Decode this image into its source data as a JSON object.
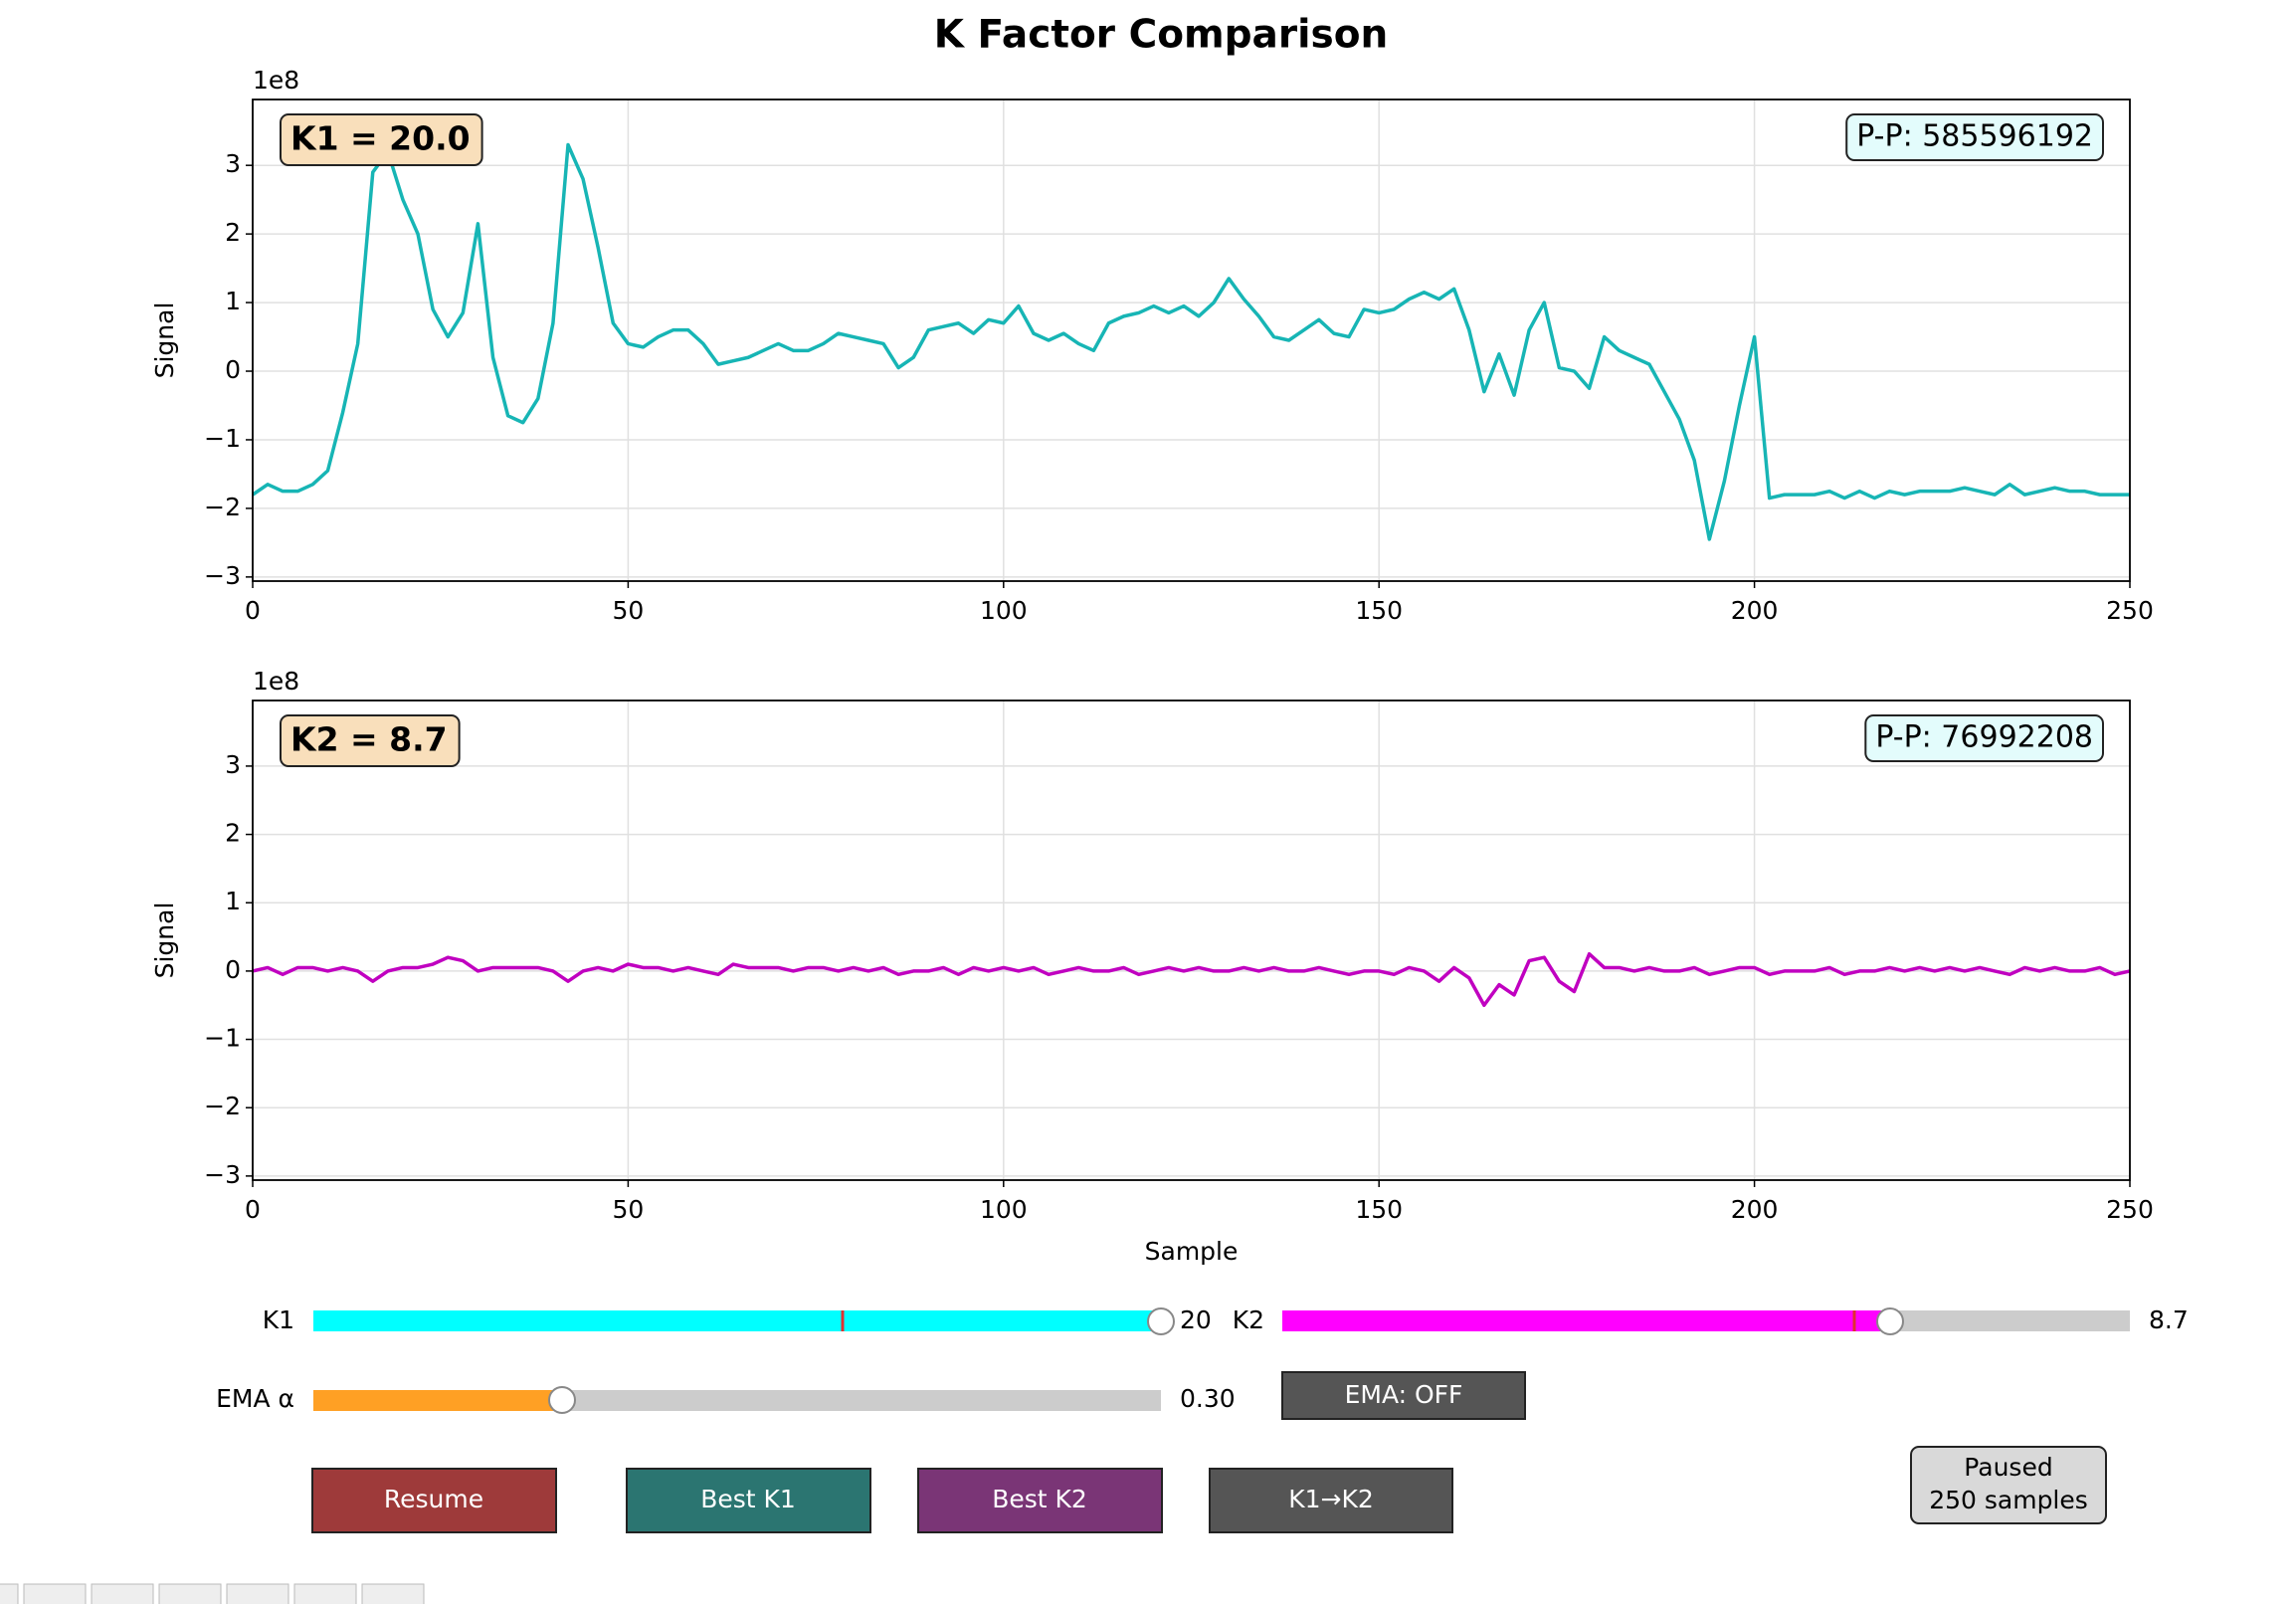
{
  "chart_data": [
    {
      "type": "line",
      "title": "K Factor Comparison",
      "ylabel": "Signal",
      "offset_label": "1e8",
      "badge": "K1 = 20.0",
      "annotation": "P-P: 585596192",
      "x": [
        0,
        2,
        4,
        6,
        8,
        10,
        12,
        14,
        16,
        18,
        20,
        22,
        24,
        26,
        28,
        30,
        32,
        34,
        36,
        38,
        40,
        42,
        44,
        46,
        48,
        50,
        52,
        54,
        56,
        58,
        60,
        62,
        64,
        66,
        68,
        70,
        72,
        74,
        76,
        78,
        80,
        82,
        84,
        86,
        88,
        90,
        92,
        94,
        96,
        98,
        100,
        102,
        104,
        106,
        108,
        110,
        112,
        114,
        116,
        118,
        120,
        122,
        124,
        126,
        128,
        130,
        132,
        134,
        136,
        138,
        140,
        142,
        144,
        146,
        148,
        150,
        152,
        154,
        156,
        158,
        160,
        162,
        164,
        166,
        168,
        170,
        172,
        174,
        176,
        178,
        180,
        182,
        184,
        186,
        188,
        190,
        192,
        194,
        196,
        198,
        200,
        202,
        204,
        206,
        208,
        210,
        212,
        214,
        216,
        218,
        220,
        222,
        224,
        226,
        228,
        230,
        232,
        234,
        236,
        238,
        240,
        242,
        244,
        246,
        248,
        250
      ],
      "series": [
        {
          "color": "#17b5b5",
          "values": [
            -1.8,
            -1.65,
            -1.75,
            -1.75,
            -1.65,
            -1.45,
            -0.6,
            0.4,
            2.9,
            3.2,
            2.5,
            2.0,
            0.9,
            0.5,
            0.85,
            2.15,
            0.2,
            -0.65,
            -0.75,
            -0.4,
            0.7,
            3.3,
            2.8,
            1.8,
            0.7,
            0.4,
            0.35,
            0.5,
            0.6,
            0.6,
            0.4,
            0.1,
            0.15,
            0.2,
            0.3,
            0.4,
            0.3,
            0.3,
            0.4,
            0.55,
            0.5,
            0.45,
            0.4,
            0.05,
            0.2,
            0.6,
            0.65,
            0.7,
            0.55,
            0.75,
            0.7,
            0.95,
            0.55,
            0.45,
            0.55,
            0.4,
            0.3,
            0.7,
            0.8,
            0.85,
            0.95,
            0.85,
            0.95,
            0.8,
            1.0,
            1.35,
            1.05,
            0.8,
            0.5,
            0.45,
            0.6,
            0.75,
            0.55,
            0.5,
            0.9,
            0.85,
            0.9,
            1.05,
            1.15,
            1.05,
            1.2,
            0.6,
            -0.3,
            0.25,
            -0.35,
            0.6,
            1.0,
            0.05,
            0.0,
            -0.25,
            0.5,
            0.3,
            0.2,
            0.1,
            -0.3,
            -0.7,
            -1.3,
            -2.45,
            -1.6,
            -0.5,
            0.5,
            -1.85,
            -1.8,
            -1.8,
            -1.8,
            -1.75,
            -1.85,
            -1.75,
            -1.85,
            -1.75,
            -1.8,
            -1.75,
            -1.75,
            -1.75,
            -1.7,
            -1.75,
            -1.8,
            -1.65,
            -1.8,
            -1.75,
            -1.7,
            -1.75,
            -1.75,
            -1.8,
            -1.8,
            -1.8
          ]
        }
      ],
      "xlim": [
        0,
        250
      ],
      "xticks": [
        0,
        50,
        100,
        150,
        200,
        250
      ],
      "ylim": [
        -3.06,
        3.96
      ],
      "yticks": [
        {
          "value": -3,
          "label": "−3"
        },
        {
          "value": -2,
          "label": "−2"
        },
        {
          "value": -1,
          "label": "−1"
        },
        0,
        1,
        2,
        3
      ],
      "grid": true
    },
    {
      "type": "line",
      "xlabel": "Sample",
      "ylabel": "Signal",
      "offset_label": "1e8",
      "badge": "K2 = 8.7",
      "annotation": "P-P: 76992208",
      "x": [
        0,
        2,
        4,
        6,
        8,
        10,
        12,
        14,
        16,
        18,
        20,
        22,
        24,
        26,
        28,
        30,
        32,
        34,
        36,
        38,
        40,
        42,
        44,
        46,
        48,
        50,
        52,
        54,
        56,
        58,
        60,
        62,
        64,
        66,
        68,
        70,
        72,
        74,
        76,
        78,
        80,
        82,
        84,
        86,
        88,
        90,
        92,
        94,
        96,
        98,
        100,
        102,
        104,
        106,
        108,
        110,
        112,
        114,
        116,
        118,
        120,
        122,
        124,
        126,
        128,
        130,
        132,
        134,
        136,
        138,
        140,
        142,
        144,
        146,
        148,
        150,
        152,
        154,
        156,
        158,
        160,
        162,
        164,
        166,
        168,
        170,
        172,
        174,
        176,
        178,
        180,
        182,
        184,
        186,
        188,
        190,
        192,
        194,
        196,
        198,
        200,
        202,
        204,
        206,
        208,
        210,
        212,
        214,
        216,
        218,
        220,
        222,
        224,
        226,
        228,
        230,
        232,
        234,
        236,
        238,
        240,
        242,
        244,
        246,
        248,
        250
      ],
      "series": [
        {
          "color": "#c000c0",
          "values": [
            0,
            0.05,
            -0.05,
            0.05,
            0.05,
            0,
            0.05,
            0,
            -0.15,
            0,
            0.05,
            0.05,
            0.1,
            0.2,
            0.15,
            0,
            0.05,
            0.05,
            0.05,
            0.05,
            0,
            -0.15,
            0,
            0.05,
            0,
            0.1,
            0.05,
            0.05,
            0,
            0.05,
            0,
            -0.05,
            0.1,
            0.05,
            0.05,
            0.05,
            0,
            0.05,
            0.05,
            0,
            0.05,
            0,
            0.05,
            -0.05,
            0,
            0,
            0.05,
            -0.05,
            0.05,
            0,
            0.05,
            0,
            0.05,
            -0.05,
            0,
            0.05,
            0,
            0,
            0.05,
            -0.05,
            0,
            0.05,
            0,
            0.05,
            0,
            0,
            0.05,
            0,
            0.05,
            0,
            0,
            0.05,
            0,
            -0.05,
            0,
            0,
            -0.05,
            0.05,
            0,
            -0.15,
            0.05,
            -0.1,
            -0.5,
            -0.2,
            -0.35,
            0.15,
            0.2,
            -0.15,
            -0.3,
            0.25,
            0.05,
            0.05,
            0,
            0.05,
            0,
            0,
            0.05,
            -0.05,
            0,
            0.05,
            0.05,
            -0.05,
            0,
            0,
            0,
            0.05,
            -0.05,
            0,
            0,
            0.05,
            0,
            0.05,
            0,
            0.05,
            0,
            0.05,
            0,
            -0.05,
            0.05,
            0,
            0.05,
            0,
            0,
            0.05,
            -0.05,
            0
          ]
        }
      ],
      "xlim": [
        0,
        250
      ],
      "xticks": [
        0,
        50,
        100,
        150,
        200,
        250
      ],
      "ylim": [
        -3.06,
        3.96
      ],
      "yticks": [
        {
          "value": -3,
          "label": "−3"
        },
        {
          "value": -2,
          "label": "−2"
        },
        {
          "value": -1,
          "label": "−1"
        },
        0,
        1,
        2,
        3
      ],
      "grid": true
    }
  ],
  "controls": {
    "sliders": [
      {
        "label": "K1",
        "value_text": "20"
      },
      {
        "label": "K2",
        "value_text": "8.7"
      },
      {
        "label": "EMA α",
        "value_text": "0.30"
      }
    ],
    "ema_toggle": "EMA: OFF",
    "buttons": [
      "Resume",
      "Best K1",
      "Best K2",
      "K1→K2"
    ],
    "status": [
      "Paused",
      "250 samples"
    ]
  }
}
